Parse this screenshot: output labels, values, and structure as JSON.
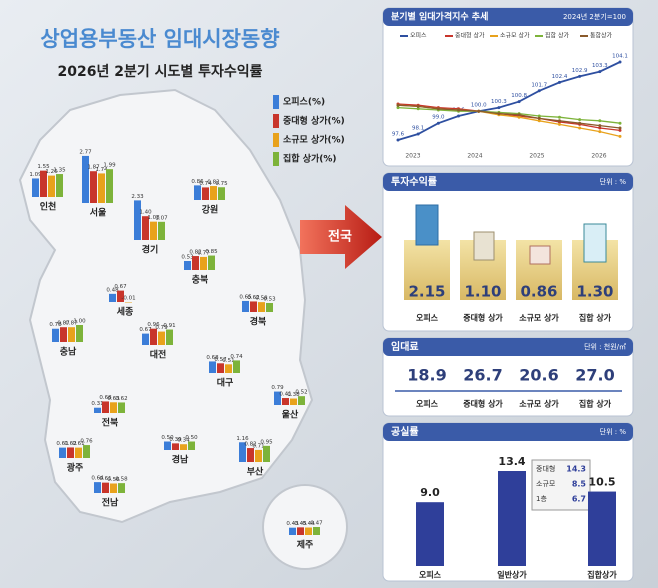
{
  "header": {
    "title": "상업용부동산 임대시장동향",
    "subtitle": "2026년 2분기 시도별 투자수익률"
  },
  "map": {
    "legend": [
      {
        "name": "오피스(%)",
        "color": "#3b7dd8"
      },
      {
        "name": "중대형 상가(%)",
        "color": "#c8352b"
      },
      {
        "name": "소규모 상가(%)",
        "color": "#e8a21c"
      },
      {
        "name": "집합 상가(%)",
        "color": "#7db33a"
      }
    ],
    "arrow_label": "전국",
    "regions": [
      {
        "name": "인천",
        "values": [
          1.09,
          1.55,
          1.26,
          1.35
        ],
        "value_labels": [
          "1.09",
          "1.55",
          "1.26",
          "1.35"
        ]
      },
      {
        "name": "서울",
        "values": [
          2.77,
          1.87,
          1.74,
          1.99
        ],
        "value_labels": [
          "2.77",
          "1.87",
          "1.74",
          "1.99"
        ]
      },
      {
        "name": "경기",
        "values": [
          2.33,
          1.4,
          1.08,
          1.07
        ],
        "value_labels": [
          "2.33",
          "1.40",
          "1.08",
          "1.07"
        ]
      },
      {
        "name": "강원",
        "values": [
          0.86,
          0.74,
          0.82,
          0.75
        ],
        "value_labels": [
          "0.86",
          "0.74",
          "0.82",
          "0.75"
        ]
      },
      {
        "name": "충북",
        "values": [
          0.53,
          0.82,
          0.77,
          0.85
        ],
        "value_labels": [
          "0.53",
          "0.82",
          "0.77",
          "0.85"
        ]
      },
      {
        "name": "세종",
        "values": [
          0.48,
          0.67,
          -0.01,
          null
        ],
        "value_labels": [
          "0.48",
          "0.67",
          "-0.01",
          null
        ]
      },
      {
        "name": "충남",
        "values": [
          0.78,
          0.87,
          0.87,
          1.0
        ],
        "value_labels": [
          "0.78",
          "0.87",
          "0.87",
          "1.00"
        ]
      },
      {
        "name": "대전",
        "values": [
          0.67,
          0.96,
          0.79,
          0.91
        ],
        "value_labels": [
          "0.67",
          "0.96",
          "0.79",
          "0.91"
        ]
      },
      {
        "name": "경북",
        "values": [
          0.65,
          0.62,
          0.58,
          0.53
        ],
        "value_labels": [
          "0.65",
          "0.62",
          "0.58",
          "0.53"
        ]
      },
      {
        "name": "대구",
        "values": [
          0.68,
          0.57,
          0.51,
          0.74
        ],
        "value_labels": [
          "0.68",
          "0.57",
          "0.51",
          "0.74"
        ]
      },
      {
        "name": "울산",
        "values": [
          0.79,
          0.41,
          0.38,
          0.52
        ],
        "value_labels": [
          "0.79",
          "0.41",
          "0.38",
          "0.52"
        ]
      },
      {
        "name": "전북",
        "values": [
          0.31,
          0.68,
          0.63,
          0.62
        ],
        "value_labels": [
          "0.31",
          "0.68",
          "0.63",
          "0.62"
        ]
      },
      {
        "name": "경남",
        "values": [
          0.5,
          0.39,
          0.34,
          0.5
        ],
        "value_labels": [
          "0.50",
          "0.39",
          "0.34",
          "0.50"
        ]
      },
      {
        "name": "부산",
        "values": [
          1.16,
          0.82,
          0.71,
          0.95
        ],
        "value_labels": [
          "1.16",
          "0.82",
          "0.71",
          "0.95"
        ]
      },
      {
        "name": "광주",
        "values": [
          0.61,
          0.62,
          0.61,
          0.76
        ],
        "value_labels": [
          "0.61",
          "0.62",
          "0.61",
          "0.76"
        ]
      },
      {
        "name": "전남",
        "values": [
          0.64,
          0.61,
          0.56,
          0.58
        ],
        "value_labels": [
          "0.64",
          "0.61",
          "0.56",
          "0.58"
        ]
      },
      {
        "name": "제주",
        "values": [
          0.43,
          0.45,
          0.44,
          0.47
        ],
        "value_labels": [
          "0.43",
          "0.45",
          "0.44",
          "0.47"
        ]
      }
    ]
  },
  "trend": {
    "title": "분기별 임대가격지수 추세",
    "note": "2024년 2분기=100",
    "year_labels": [
      "2023",
      "2024",
      "2025",
      "2026"
    ],
    "series": [
      {
        "name": "오피스",
        "color": "#2e4fa0",
        "values": [
          97.6,
          98.1,
          99.0,
          99.6,
          100.0,
          100.3,
          100.8,
          101.7,
          102.4,
          102.9,
          103.3,
          104.1
        ],
        "value_labels": [
          "97.6",
          "98.1",
          "99.0",
          "99.6",
          "100.0",
          "100.3",
          "100.8",
          "101.7",
          "102.4",
          "102.9",
          "103.3",
          "104.1"
        ]
      },
      {
        "name": "중대형 상가",
        "color": "#c8352b",
        "values": [
          100.6,
          100.5,
          100.3,
          100.2,
          100.0,
          99.8,
          99.6,
          99.4,
          99.1,
          98.9,
          98.6,
          98.4
        ]
      },
      {
        "name": "소규모 상가",
        "color": "#e8a21c",
        "values": [
          100.5,
          100.4,
          100.2,
          100.1,
          100.0,
          99.7,
          99.5,
          99.2,
          98.9,
          98.6,
          98.3,
          97.9
        ]
      },
      {
        "name": "집합 상가",
        "color": "#7db33a",
        "values": [
          100.3,
          100.2,
          100.1,
          100.0,
          100.0,
          99.9,
          99.8,
          99.6,
          99.5,
          99.3,
          99.2,
          99.0
        ]
      },
      {
        "name": "통합상가",
        "color": "#8a5a2b",
        "values": [
          100.5,
          100.4,
          100.2,
          100.1,
          100.0,
          99.8,
          99.7,
          99.4,
          99.2,
          99.0,
          98.8,
          98.6
        ]
      }
    ]
  },
  "returns": {
    "title": "투자수익률",
    "unit": "단위 : %",
    "items": [
      {
        "name": "오피스",
        "value": "2.15"
      },
      {
        "name": "중대형 상가",
        "value": "1.10"
      },
      {
        "name": "소규모 상가",
        "value": "0.86"
      },
      {
        "name": "집합 상가",
        "value": "1.30"
      }
    ]
  },
  "rent": {
    "title": "임대료",
    "unit": "단위 : 천원/㎡",
    "items": [
      {
        "name": "오피스",
        "value": "18.9"
      },
      {
        "name": "중대형 상가",
        "value": "26.7"
      },
      {
        "name": "소규모 상가",
        "value": "20.6"
      },
      {
        "name": "집합 상가",
        "value": "27.0"
      }
    ]
  },
  "vacancy": {
    "title": "공실률",
    "unit": "단위 : %",
    "items": [
      {
        "name": "오피스",
        "value": 9.0,
        "value_label": "9.0"
      },
      {
        "name": "일반상가",
        "value": 13.4,
        "value_label": "13.4"
      },
      {
        "name": "집합상가",
        "value": 10.5,
        "value_label": "10.5"
      }
    ],
    "breakdown": [
      {
        "name": "중대형",
        "value": "14.3"
      },
      {
        "name": "소규모",
        "value": "8.5"
      },
      {
        "name": "1층",
        "value": "6.7"
      }
    ]
  }
}
